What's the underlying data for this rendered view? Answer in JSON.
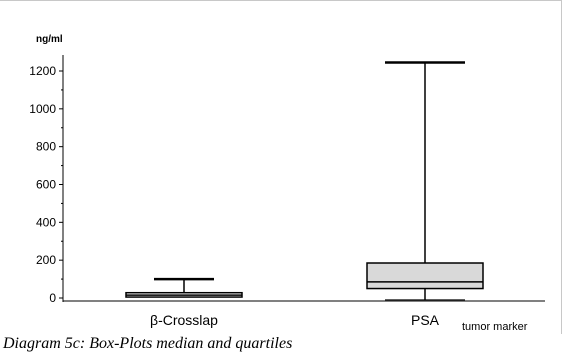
{
  "caption": "Diagram 5c: Box-Plots median and quartiles",
  "chart_data": {
    "type": "box",
    "title": "",
    "ylabel": "ng/ml",
    "xlabel": "tumor marker",
    "ylim": [
      0,
      1300
    ],
    "yticks": [
      0,
      200,
      400,
      600,
      800,
      1000,
      1200
    ],
    "grid": false,
    "categories": [
      "β-Crosslap",
      "PSA"
    ],
    "boxes": [
      {
        "category": "β-Crosslap",
        "min": 5,
        "q1": 5,
        "median": 15,
        "q3": 28,
        "max": 100,
        "fill": "#ffffff"
      },
      {
        "category": "PSA",
        "min": -10,
        "q1": 50,
        "median": 85,
        "q3": 185,
        "max": 1245,
        "fill": "#d9d9d9"
      }
    ]
  }
}
